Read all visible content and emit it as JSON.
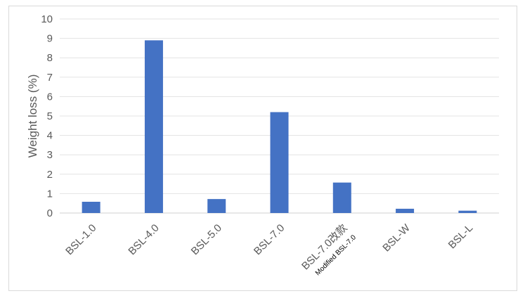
{
  "chart_data": {
    "type": "bar",
    "title": "",
    "xlabel": "",
    "ylabel": "Weight loss (%)",
    "ylim": [
      0,
      10
    ],
    "yticks": [
      0,
      1,
      2,
      3,
      4,
      5,
      6,
      7,
      8,
      9,
      10
    ],
    "grid": true,
    "categories": [
      "BSL-1.0",
      "BSL-4.0",
      "BSL-5.0",
      "BSL-7.0",
      "BSL-7.0改款",
      "BSL-W",
      "BSL-L"
    ],
    "values": [
      0.58,
      8.9,
      0.72,
      5.2,
      1.57,
      0.22,
      0.12
    ],
    "bar_color": "#4472c4",
    "annotations": [
      {
        "text": "Modified BSL-7.0",
        "category": "BSL-7.0改款"
      }
    ]
  }
}
